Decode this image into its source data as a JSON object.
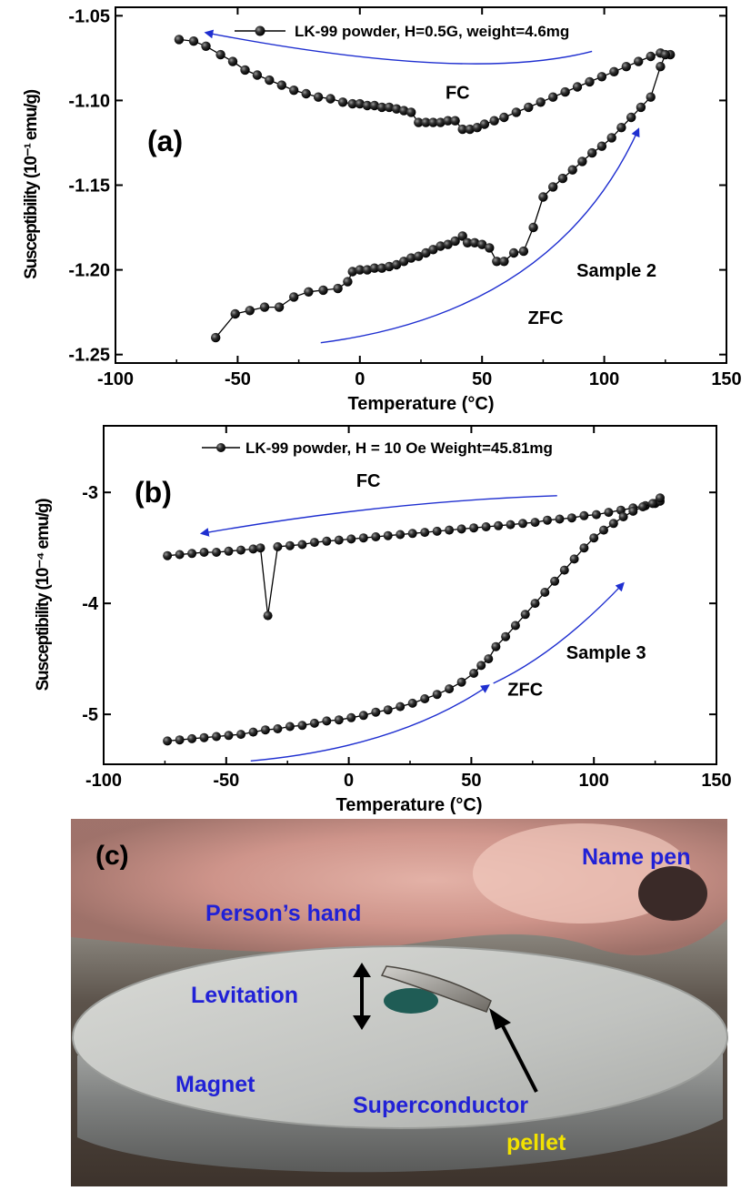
{
  "chart_data": [
    {
      "type": "scatter",
      "panel_label": "(a)",
      "xlabel": "Temperature (°C)",
      "ylabel": "Susceptibility (10⁻¹ emu/g)",
      "xlim": [
        -100,
        150
      ],
      "ylim": [
        -1.255,
        -1.045
      ],
      "xticks": [
        -100,
        -50,
        0,
        50,
        100,
        150
      ],
      "xtick_labels": [
        "-100",
        "-50",
        "0",
        "50",
        "100",
        "150"
      ],
      "yticks": [
        -1.05,
        -1.1,
        -1.15,
        -1.2,
        -1.25
      ],
      "ytick_labels": [
        "-1.05",
        "-1.10",
        "-1.15",
        "-1.20",
        "-1.25"
      ],
      "legend": "LK-99 powder, H=0.5G, weight=4.6mg",
      "annotations": [
        {
          "text": "FC",
          "x": 40,
          "y": -1.099
        },
        {
          "text": "Sample 2",
          "x": 105,
          "y": -1.204
        },
        {
          "text": "ZFC",
          "x": 76,
          "y": -1.232
        }
      ],
      "arrows": [
        {
          "from": [
            95,
            -1.071
          ],
          "ctrl": [
            45,
            -1.09
          ],
          "to": [
            -63,
            -1.06
          ]
        },
        {
          "from": [
            -16,
            -1.243
          ],
          "ctrl": [
            80,
            -1.225
          ],
          "to": [
            114,
            -1.117
          ]
        }
      ],
      "series": [
        {
          "points": [
            [
              -74,
              -1.064
            ],
            [
              -68,
              -1.065
            ],
            [
              -63,
              -1.068
            ],
            [
              -57,
              -1.073
            ],
            [
              -52,
              -1.077
            ],
            [
              -47,
              -1.082
            ],
            [
              -42,
              -1.085
            ],
            [
              -37,
              -1.088
            ],
            [
              -32,
              -1.091
            ],
            [
              -27,
              -1.094
            ],
            [
              -22,
              -1.096
            ],
            [
              -17,
              -1.098
            ],
            [
              -12,
              -1.099
            ],
            [
              -7,
              -1.101
            ],
            [
              -3,
              -1.102
            ],
            [
              0,
              -1.102
            ],
            [
              3,
              -1.103
            ],
            [
              6,
              -1.103
            ],
            [
              9,
              -1.104
            ],
            [
              12,
              -1.104
            ],
            [
              15,
              -1.105
            ],
            [
              18,
              -1.106
            ],
            [
              21,
              -1.107
            ],
            [
              24,
              -1.113
            ],
            [
              27,
              -1.113
            ],
            [
              30,
              -1.113
            ],
            [
              33,
              -1.113
            ],
            [
              36,
              -1.112
            ],
            [
              39,
              -1.112
            ],
            [
              42,
              -1.117
            ],
            [
              45,
              -1.117
            ],
            [
              48,
              -1.116
            ],
            [
              51,
              -1.114
            ],
            [
              55,
              -1.112
            ],
            [
              59,
              -1.11
            ],
            [
              64,
              -1.107
            ],
            [
              69,
              -1.104
            ],
            [
              74,
              -1.101
            ],
            [
              79,
              -1.098
            ],
            [
              84,
              -1.095
            ],
            [
              89,
              -1.092
            ],
            [
              94,
              -1.089
            ],
            [
              99,
              -1.086
            ],
            [
              104,
              -1.083
            ],
            [
              109,
              -1.08
            ],
            [
              114,
              -1.077
            ],
            [
              119,
              -1.074
            ],
            [
              123,
              -1.072
            ],
            [
              127,
              -1.073
            ]
          ]
        },
        {
          "points": [
            [
              -59,
              -1.24
            ],
            [
              -51,
              -1.226
            ],
            [
              -45,
              -1.224
            ],
            [
              -39,
              -1.222
            ],
            [
              -33,
              -1.222
            ],
            [
              -27,
              -1.216
            ],
            [
              -21,
              -1.213
            ],
            [
              -15,
              -1.212
            ],
            [
              -9,
              -1.211
            ],
            [
              -5,
              -1.207
            ],
            [
              -3,
              -1.201
            ],
            [
              0,
              -1.2
            ],
            [
              3,
              -1.2
            ],
            [
              6,
              -1.199
            ],
            [
              9,
              -1.199
            ],
            [
              12,
              -1.198
            ],
            [
              15,
              -1.197
            ],
            [
              18,
              -1.195
            ],
            [
              21,
              -1.193
            ],
            [
              24,
              -1.192
            ],
            [
              27,
              -1.19
            ],
            [
              30,
              -1.188
            ],
            [
              33,
              -1.186
            ],
            [
              36,
              -1.185
            ],
            [
              39,
              -1.183
            ],
            [
              42,
              -1.18
            ],
            [
              44,
              -1.184
            ],
            [
              47,
              -1.184
            ],
            [
              50,
              -1.185
            ],
            [
              53,
              -1.187
            ],
            [
              56,
              -1.195
            ],
            [
              59,
              -1.195
            ],
            [
              63,
              -1.19
            ],
            [
              67,
              -1.189
            ],
            [
              71,
              -1.175
            ],
            [
              75,
              -1.157
            ],
            [
              79,
              -1.151
            ],
            [
              83,
              -1.146
            ],
            [
              87,
              -1.141
            ],
            [
              91,
              -1.136
            ],
            [
              95,
              -1.131
            ],
            [
              99,
              -1.127
            ],
            [
              103,
              -1.122
            ],
            [
              107,
              -1.116
            ],
            [
              111,
              -1.11
            ],
            [
              115,
              -1.104
            ],
            [
              119,
              -1.098
            ],
            [
              123,
              -1.08
            ],
            [
              125,
              -1.073
            ]
          ]
        }
      ]
    },
    {
      "type": "scatter",
      "panel_label": "(b)",
      "xlabel": "Temperature (°C)",
      "ylabel": "Susceptibility (10⁻⁴ emu/g)",
      "xlim": [
        -100,
        150
      ],
      "ylim": [
        -5.45,
        -2.4
      ],
      "xticks": [
        -100,
        -50,
        0,
        50,
        100,
        150
      ],
      "xtick_labels": [
        "-100",
        "-50",
        "0",
        "50",
        "100",
        "150"
      ],
      "yticks": [
        -3,
        -4,
        -5
      ],
      "ytick_labels": [
        "-3",
        "-4",
        "-5"
      ],
      "legend": "LK-99 powder, H = 10 Oe  Weight=45.81mg",
      "annotations": [
        {
          "text": "FC",
          "x": 8,
          "y": -2.95
        },
        {
          "text": "Sample 3",
          "x": 105,
          "y": -4.5
        },
        {
          "text": "ZFC",
          "x": 72,
          "y": -4.83
        }
      ],
      "arrows": [
        {
          "from": [
            85,
            -3.03
          ],
          "ctrl": [
            15,
            -3.08
          ],
          "to": [
            -60,
            -3.37
          ]
        },
        {
          "from": [
            -40,
            -5.42
          ],
          "ctrl": [
            20,
            -5.3
          ],
          "to": [
            57,
            -4.74
          ]
        },
        {
          "from": [
            59,
            -4.72
          ],
          "ctrl": [
            85,
            -4.45
          ],
          "to": [
            112,
            -3.82
          ]
        }
      ],
      "series": [
        {
          "points": [
            [
              -74,
              -3.57
            ],
            [
              -69,
              -3.56
            ],
            [
              -64,
              -3.55
            ],
            [
              -59,
              -3.54
            ],
            [
              -54,
              -3.54
            ],
            [
              -49,
              -3.53
            ],
            [
              -44,
              -3.52
            ],
            [
              -39,
              -3.51
            ],
            [
              -36,
              -3.5
            ],
            [
              -33,
              -4.11
            ],
            [
              -29,
              -3.49
            ],
            [
              -24,
              -3.48
            ],
            [
              -19,
              -3.47
            ],
            [
              -14,
              -3.45
            ],
            [
              -9,
              -3.44
            ],
            [
              -4,
              -3.43
            ],
            [
              1,
              -3.42
            ],
            [
              6,
              -3.41
            ],
            [
              11,
              -3.4
            ],
            [
              16,
              -3.39
            ],
            [
              21,
              -3.38
            ],
            [
              26,
              -3.37
            ],
            [
              31,
              -3.36
            ],
            [
              36,
              -3.35
            ],
            [
              41,
              -3.34
            ],
            [
              46,
              -3.33
            ],
            [
              51,
              -3.32
            ],
            [
              56,
              -3.31
            ],
            [
              61,
              -3.3
            ],
            [
              66,
              -3.29
            ],
            [
              71,
              -3.28
            ],
            [
              76,
              -3.27
            ],
            [
              81,
              -3.25
            ],
            [
              86,
              -3.24
            ],
            [
              91,
              -3.23
            ],
            [
              96,
              -3.21
            ],
            [
              101,
              -3.2
            ],
            [
              106,
              -3.18
            ],
            [
              111,
              -3.16
            ],
            [
              116,
              -3.14
            ],
            [
              121,
              -3.12
            ],
            [
              125,
              -3.1
            ],
            [
              127,
              -3.08
            ]
          ]
        },
        {
          "points": [
            [
              -74,
              -5.24
            ],
            [
              -69,
              -5.23
            ],
            [
              -64,
              -5.22
            ],
            [
              -59,
              -5.21
            ],
            [
              -54,
              -5.2
            ],
            [
              -49,
              -5.19
            ],
            [
              -44,
              -5.18
            ],
            [
              -39,
              -5.16
            ],
            [
              -34,
              -5.14
            ],
            [
              -29,
              -5.13
            ],
            [
              -24,
              -5.11
            ],
            [
              -19,
              -5.1
            ],
            [
              -14,
              -5.08
            ],
            [
              -9,
              -5.06
            ],
            [
              -4,
              -5.05
            ],
            [
              1,
              -5.03
            ],
            [
              6,
              -5.01
            ],
            [
              11,
              -4.98
            ],
            [
              16,
              -4.96
            ],
            [
              21,
              -4.93
            ],
            [
              26,
              -4.9
            ],
            [
              31,
              -4.86
            ],
            [
              36,
              -4.82
            ],
            [
              41,
              -4.77
            ],
            [
              46,
              -4.71
            ],
            [
              51,
              -4.63
            ],
            [
              54,
              -4.56
            ],
            [
              57,
              -4.5
            ],
            [
              60,
              -4.39
            ],
            [
              64,
              -4.3
            ],
            [
              68,
              -4.2
            ],
            [
              72,
              -4.1
            ],
            [
              76,
              -4.0
            ],
            [
              80,
              -3.9
            ],
            [
              84,
              -3.8
            ],
            [
              88,
              -3.7
            ],
            [
              92,
              -3.6
            ],
            [
              96,
              -3.5
            ],
            [
              100,
              -3.41
            ],
            [
              104,
              -3.34
            ],
            [
              108,
              -3.28
            ],
            [
              112,
              -3.22
            ],
            [
              116,
              -3.17
            ],
            [
              120,
              -3.13
            ],
            [
              124,
              -3.1
            ],
            [
              127,
              -3.05
            ]
          ]
        }
      ]
    }
  ],
  "photo": {
    "panel_label": "(c)",
    "labels": {
      "name_pen": "Name pen",
      "persons_hand": "Person’s hand",
      "levitation": "Levitation",
      "magnet": "Magnet",
      "superconductor": "Superconductor",
      "pellet": "pellet"
    }
  }
}
